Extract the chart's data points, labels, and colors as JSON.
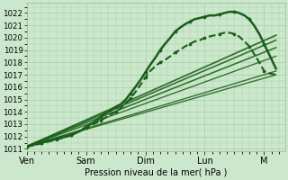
{
  "background_color": "#cce8cc",
  "grid_color": "#aaccaa",
  "line_color": "#1a5e1a",
  "xlabel": "Pression niveau de la mer( hPa )",
  "ylim": [
    1011,
    1022.5
  ],
  "yticks": [
    1011,
    1012,
    1013,
    1014,
    1015,
    1016,
    1017,
    1018,
    1019,
    1020,
    1021,
    1022
  ],
  "xlim": [
    0,
    4.35
  ],
  "xtick_positions": [
    0,
    1,
    2,
    3,
    4
  ],
  "xtick_labels": [
    "Ven",
    "Sam",
    "Dim",
    "Lun",
    "M"
  ],
  "fan_lines": [
    {
      "x": [
        0.0,
        4.2
      ],
      "y": [
        1011.2,
        1017.0
      ],
      "lw": 1.0
    },
    {
      "x": [
        0.0,
        4.2
      ],
      "y": [
        1011.2,
        1017.3
      ],
      "lw": 1.0
    },
    {
      "x": [
        0.0,
        4.2
      ],
      "y": [
        1011.2,
        1018.5
      ],
      "lw": 1.0
    },
    {
      "x": [
        0.0,
        4.2
      ],
      "y": [
        1011.2,
        1019.2
      ],
      "lw": 1.2
    },
    {
      "x": [
        0.0,
        4.2
      ],
      "y": [
        1011.2,
        1019.8
      ],
      "lw": 1.2
    },
    {
      "x": [
        0.0,
        4.2
      ],
      "y": [
        1011.2,
        1020.2
      ],
      "lw": 1.3
    }
  ],
  "main_curves": [
    {
      "x": [
        0.0,
        0.08,
        0.17,
        0.25,
        0.33,
        0.42,
        0.5,
        0.58,
        0.67,
        0.75,
        0.83,
        0.92,
        1.0,
        1.08,
        1.17,
        1.25,
        1.33,
        1.42,
        1.5,
        1.58,
        1.67,
        1.75,
        1.83,
        1.92,
        2.0,
        2.08,
        2.17,
        2.25,
        2.33,
        2.42,
        2.5,
        2.58,
        2.67,
        2.75,
        2.83,
        2.92,
        3.0,
        3.08,
        3.17,
        3.25,
        3.33,
        3.42,
        3.5,
        3.58,
        3.67,
        3.75,
        3.83,
        3.92,
        4.0,
        4.1,
        4.2
      ],
      "y": [
        1011.2,
        1011.3,
        1011.4,
        1011.5,
        1011.6,
        1011.7,
        1011.8,
        1011.9,
        1012.0,
        1012.1,
        1012.3,
        1012.5,
        1012.8,
        1013.0,
        1013.3,
        1013.6,
        1013.9,
        1014.1,
        1014.4,
        1014.6,
        1015.0,
        1015.5,
        1016.0,
        1016.6,
        1017.2,
        1017.8,
        1018.4,
        1019.0,
        1019.5,
        1020.0,
        1020.5,
        1020.8,
        1021.1,
        1021.3,
        1021.5,
        1021.6,
        1021.7,
        1021.8,
        1021.8,
        1021.9,
        1022.0,
        1022.1,
        1022.1,
        1022.0,
        1021.8,
        1021.5,
        1021.0,
        1020.3,
        1019.5,
        1018.5,
        1017.5
      ],
      "lw": 1.8,
      "style": "-",
      "marker": "D",
      "ms": 1.5
    },
    {
      "x": [
        0.0,
        0.08,
        0.17,
        0.25,
        0.33,
        0.42,
        0.5,
        0.58,
        0.67,
        0.75,
        0.83,
        0.92,
        1.0,
        1.08,
        1.17,
        1.25,
        1.33,
        1.42,
        1.5,
        1.58,
        1.67,
        1.75,
        1.83,
        1.92,
        2.0,
        2.08,
        2.17,
        2.25,
        2.33,
        2.42,
        2.5,
        2.58,
        2.67,
        2.75,
        2.83,
        2.92,
        3.0,
        3.08,
        3.17,
        3.25,
        3.33,
        3.42,
        3.5,
        3.58,
        3.67,
        3.75,
        3.83,
        3.92,
        4.0,
        4.1,
        4.2
      ],
      "y": [
        1011.2,
        1011.25,
        1011.35,
        1011.45,
        1011.55,
        1011.65,
        1011.75,
        1011.85,
        1012.0,
        1012.15,
        1012.3,
        1012.5,
        1012.7,
        1012.9,
        1013.1,
        1013.3,
        1013.55,
        1013.8,
        1014.0,
        1014.3,
        1014.7,
        1015.1,
        1015.6,
        1016.2,
        1016.8,
        1017.3,
        1017.7,
        1018.0,
        1018.2,
        1018.5,
        1018.8,
        1019.0,
        1019.3,
        1019.5,
        1019.7,
        1019.8,
        1020.0,
        1020.1,
        1020.2,
        1020.3,
        1020.4,
        1020.4,
        1020.3,
        1020.1,
        1019.7,
        1019.3,
        1018.7,
        1018.0,
        1017.3,
        1017.1,
        1017.0
      ],
      "lw": 1.5,
      "style": "--",
      "marker": "s",
      "ms": 1.5
    }
  ]
}
